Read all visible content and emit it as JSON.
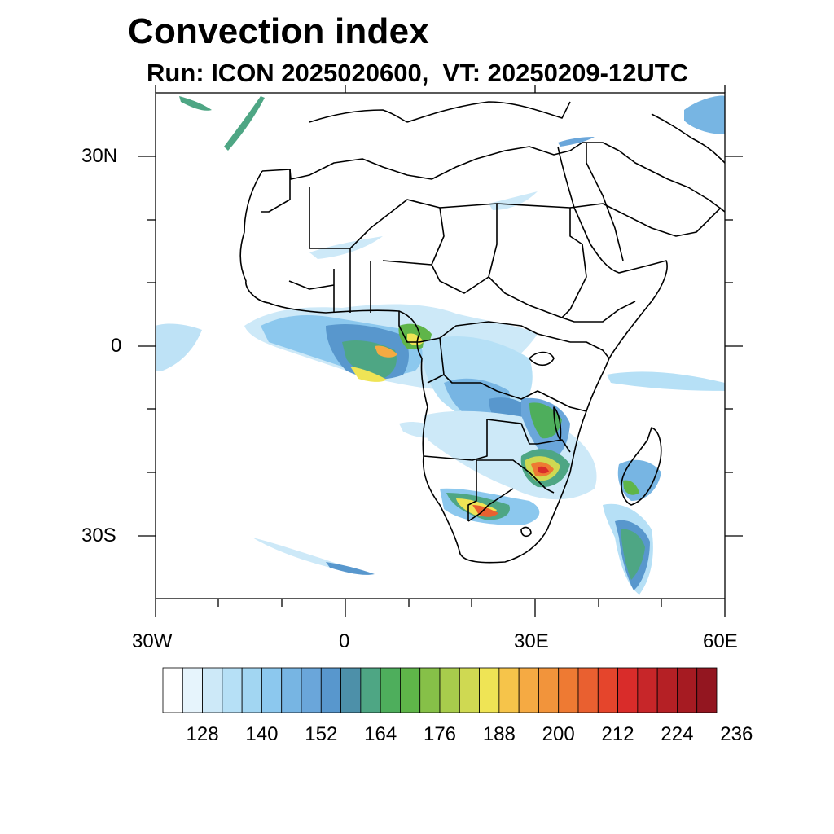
{
  "title": "Convection index",
  "subtitle": "Run: ICON 2025020600,  VT: 20250209-12UTC",
  "map": {
    "lat_labels": [
      "30N",
      "0",
      "30S"
    ],
    "lon_labels": [
      "30W",
      "0",
      "30E",
      "60E"
    ],
    "extent": {
      "lon": [
        -30,
        60
      ],
      "lat": [
        -40,
        40
      ]
    }
  },
  "colorbar": {
    "labels": [
      "128",
      "140",
      "152",
      "164",
      "176",
      "188",
      "200",
      "212",
      "224",
      "236"
    ],
    "colors": [
      "#ffffff",
      "#e6f4fc",
      "#cde9f8",
      "#b6e0f6",
      "#a2d6f2",
      "#8cc8ee",
      "#77b5e3",
      "#6aa6da",
      "#5897cd",
      "#4d90a9",
      "#4ea684",
      "#4eae5c",
      "#5fb549",
      "#86c048",
      "#a8cc4c",
      "#cfd952",
      "#efe455",
      "#f6c44a",
      "#f5aa43",
      "#f2943b",
      "#ee7a33",
      "#e96030",
      "#e5452c",
      "#d92c2a",
      "#c72629",
      "#b52025",
      "#a61b22",
      "#931620"
    ]
  }
}
